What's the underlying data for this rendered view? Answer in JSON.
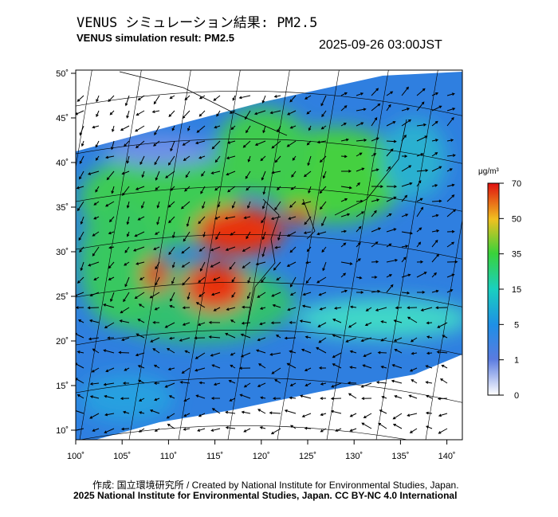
{
  "header": {
    "title": "VENUS シミュレーション結果: PM2.5",
    "subtitle": "VENUS simulation result: PM2.5",
    "timestamp": "2025-09-26 03:00JST"
  },
  "map": {
    "lat_labels": [
      "50˚",
      "45˚",
      "40˚",
      "35˚",
      "30˚",
      "25˚",
      "20˚",
      "15˚",
      "10˚"
    ],
    "lon_labels": [
      "100˚",
      "105˚",
      "110˚",
      "115˚",
      "120˚",
      "125˚",
      "130˚",
      "135˚",
      "140˚"
    ]
  },
  "colorbar": {
    "unit": "μg/m³",
    "labels": [
      "70",
      "50",
      "35",
      "15",
      "5",
      "1",
      "0"
    ]
  },
  "footer": {
    "credit": "作成: 国立環境研究所 / Created by National Institute for Environmental Studies, Japan.",
    "license": "2025 National Institute for Environmental Studies, Japan. CC BY-NC 4.0 International"
  }
}
